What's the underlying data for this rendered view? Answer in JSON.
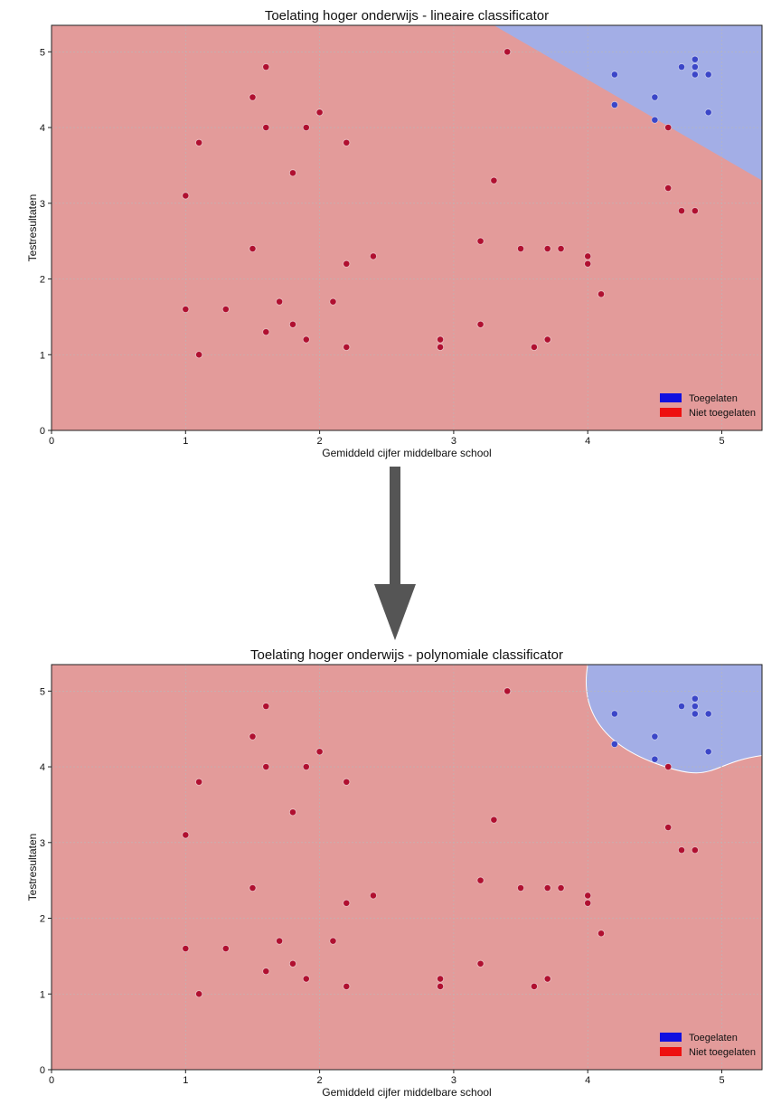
{
  "colors": {
    "admitted_region": "#a3aee6",
    "rejected_region": "#e39b9a",
    "admitted_point": "#3b46c8",
    "rejected_point": "#b01030",
    "legend_admitted": "#1010e0",
    "legend_rejected": "#ee1010",
    "arrow": "#555555",
    "grid": "#b8b8b8"
  },
  "chart_data": [
    {
      "type": "scatter",
      "title": "Toelating hoger onderwijs - lineaire classificator",
      "xlabel": "Gemiddeld cijfer middelbare school",
      "ylabel": "Testresultaten",
      "xlim": [
        0,
        5.3
      ],
      "ylim": [
        0,
        5.35
      ],
      "xticks": [
        "0",
        "1",
        "2",
        "3",
        "4",
        "5"
      ],
      "yticks": [
        "0",
        "1",
        "2",
        "3",
        "4",
        "5"
      ],
      "grid": true,
      "legend_position": "bottom-right",
      "legend": [
        "Toegelaten",
        "Niet toegelaten"
      ],
      "decision_boundary": {
        "kind": "linear",
        "points": [
          [
            3.3,
            5.35
          ],
          [
            5.3,
            3.3
          ]
        ]
      },
      "series": [
        {
          "name": "Toegelaten",
          "class": "admitted",
          "points": [
            [
              4.2,
              4.7
            ],
            [
              4.2,
              4.3
            ],
            [
              4.5,
              4.4
            ],
            [
              4.5,
              4.1
            ],
            [
              4.7,
              4.8
            ],
            [
              4.8,
              4.9
            ],
            [
              4.8,
              4.8
            ],
            [
              4.8,
              4.7
            ],
            [
              4.9,
              4.7
            ],
            [
              4.9,
              4.2
            ]
          ]
        },
        {
          "name": "Niet toegelaten",
          "class": "rejected",
          "points": [
            [
              1.0,
              3.1
            ],
            [
              1.0,
              1.6
            ],
            [
              1.1,
              3.8
            ],
            [
              1.1,
              1.0
            ],
            [
              1.3,
              1.6
            ],
            [
              1.5,
              4.4
            ],
            [
              1.5,
              2.4
            ],
            [
              1.6,
              4.8
            ],
            [
              1.6,
              4.0
            ],
            [
              1.6,
              1.3
            ],
            [
              1.7,
              1.7
            ],
            [
              1.8,
              3.4
            ],
            [
              1.8,
              1.4
            ],
            [
              1.9,
              4.0
            ],
            [
              1.9,
              1.2
            ],
            [
              2.0,
              4.2
            ],
            [
              2.1,
              1.7
            ],
            [
              2.2,
              3.8
            ],
            [
              2.2,
              2.2
            ],
            [
              2.2,
              1.1
            ],
            [
              2.4,
              2.3
            ],
            [
              2.9,
              1.2
            ],
            [
              2.9,
              1.1
            ],
            [
              3.2,
              2.5
            ],
            [
              3.2,
              1.4
            ],
            [
              3.3,
              3.3
            ],
            [
              3.4,
              5.0
            ],
            [
              3.5,
              2.4
            ],
            [
              3.6,
              1.1
            ],
            [
              3.7,
              2.4
            ],
            [
              3.7,
              1.2
            ],
            [
              3.8,
              2.4
            ],
            [
              4.0,
              2.3
            ],
            [
              4.0,
              2.2
            ],
            [
              4.1,
              1.8
            ],
            [
              4.6,
              4.0
            ],
            [
              4.6,
              3.2
            ],
            [
              4.7,
              2.9
            ],
            [
              4.8,
              2.9
            ]
          ]
        }
      ]
    },
    {
      "type": "scatter",
      "title": "Toelating hoger onderwijs - polynomiale classificator",
      "xlabel": "Gemiddeld cijfer middelbare school",
      "ylabel": "Testresultaten",
      "xlim": [
        0,
        5.3
      ],
      "ylim": [
        0,
        5.35
      ],
      "xticks": [
        "0",
        "1",
        "2",
        "3",
        "4",
        "5"
      ],
      "yticks": [
        "0",
        "1",
        "2",
        "3",
        "4",
        "5"
      ],
      "grid": true,
      "legend_position": "bottom-right",
      "legend": [
        "Toegelaten",
        "Niet toegelaten"
      ],
      "decision_boundary": {
        "kind": "curved",
        "points": [
          [
            4.0,
            5.35
          ],
          [
            3.95,
            4.85
          ],
          [
            4.05,
            4.35
          ],
          [
            4.5,
            4.05
          ],
          [
            4.9,
            4.05
          ],
          [
            5.3,
            4.15
          ]
        ]
      },
      "series": [
        {
          "name": "Toegelaten",
          "class": "admitted",
          "points": [
            [
              4.2,
              4.7
            ],
            [
              4.2,
              4.3
            ],
            [
              4.5,
              4.4
            ],
            [
              4.5,
              4.1
            ],
            [
              4.7,
              4.8
            ],
            [
              4.8,
              4.9
            ],
            [
              4.8,
              4.8
            ],
            [
              4.8,
              4.7
            ],
            [
              4.9,
              4.7
            ],
            [
              4.9,
              4.2
            ]
          ]
        },
        {
          "name": "Niet toegelaten",
          "class": "rejected",
          "points": [
            [
              1.0,
              3.1
            ],
            [
              1.0,
              1.6
            ],
            [
              1.1,
              3.8
            ],
            [
              1.1,
              1.0
            ],
            [
              1.3,
              1.6
            ],
            [
              1.5,
              4.4
            ],
            [
              1.5,
              2.4
            ],
            [
              1.6,
              4.8
            ],
            [
              1.6,
              4.0
            ],
            [
              1.6,
              1.3
            ],
            [
              1.7,
              1.7
            ],
            [
              1.8,
              3.4
            ],
            [
              1.8,
              1.4
            ],
            [
              1.9,
              4.0
            ],
            [
              1.9,
              1.2
            ],
            [
              2.0,
              4.2
            ],
            [
              2.1,
              1.7
            ],
            [
              2.2,
              3.8
            ],
            [
              2.2,
              2.2
            ],
            [
              2.2,
              1.1
            ],
            [
              2.4,
              2.3
            ],
            [
              2.9,
              1.2
            ],
            [
              2.9,
              1.1
            ],
            [
              3.2,
              2.5
            ],
            [
              3.2,
              1.4
            ],
            [
              3.3,
              3.3
            ],
            [
              3.4,
              5.0
            ],
            [
              3.5,
              2.4
            ],
            [
              3.6,
              1.1
            ],
            [
              3.7,
              2.4
            ],
            [
              3.7,
              1.2
            ],
            [
              3.8,
              2.4
            ],
            [
              4.0,
              2.3
            ],
            [
              4.0,
              2.2
            ],
            [
              4.1,
              1.8
            ],
            [
              4.6,
              4.0
            ],
            [
              4.6,
              3.2
            ],
            [
              4.7,
              2.9
            ],
            [
              4.8,
              2.9
            ]
          ]
        }
      ]
    }
  ]
}
